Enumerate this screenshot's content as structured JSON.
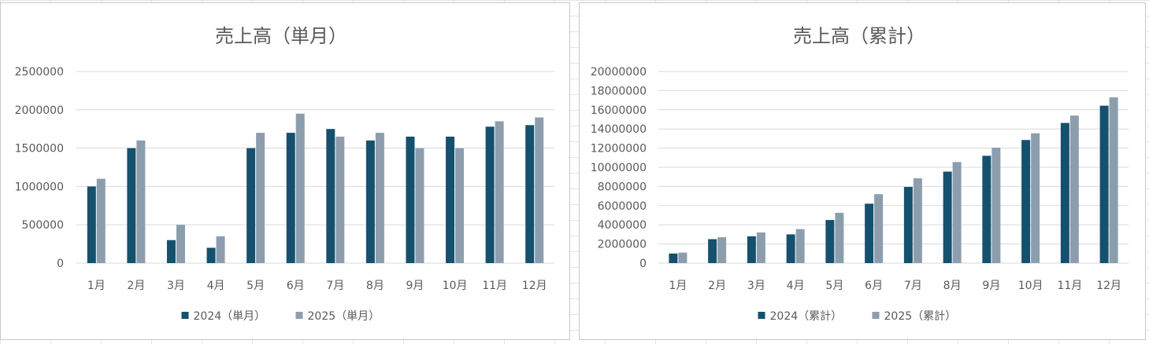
{
  "colors": {
    "series_2024": "#15516E",
    "series_2025": "#8C9EAE",
    "gridline": "#D9D9D9",
    "text": "#595959"
  },
  "chart_data": [
    {
      "type": "bar",
      "title": "売上高（単月）",
      "categories": [
        "1月",
        "2月",
        "3月",
        "4月",
        "5月",
        "6月",
        "7月",
        "8月",
        "9月",
        "10月",
        "11月",
        "12月"
      ],
      "series": [
        {
          "name": "2024（単月）",
          "values": [
            1000000,
            1500000,
            300000,
            200000,
            1500000,
            1700000,
            1750000,
            1600000,
            1650000,
            1650000,
            1780000,
            1800000
          ]
        },
        {
          "name": "2025（単月）",
          "values": [
            1100000,
            1600000,
            500000,
            350000,
            1700000,
            1950000,
            1650000,
            1700000,
            1500000,
            1500000,
            1850000,
            1900000
          ]
        }
      ],
      "ylim": [
        0,
        2500000
      ],
      "yticks": [
        "0",
        "500000",
        "1000000",
        "1500000",
        "2000000",
        "2500000"
      ],
      "grid": true,
      "legend": "bottom"
    },
    {
      "type": "bar",
      "title": "売上高（累計）",
      "categories": [
        "1月",
        "2月",
        "3月",
        "4月",
        "5月",
        "6月",
        "7月",
        "8月",
        "9月",
        "10月",
        "11月",
        "12月"
      ],
      "series": [
        {
          "name": "2024（累計）",
          "values": [
            1000000,
            2500000,
            2800000,
            3000000,
            4500000,
            6200000,
            7950000,
            9550000,
            11200000,
            12850000,
            14630000,
            16430000
          ]
        },
        {
          "name": "2025（累計）",
          "values": [
            1100000,
            2700000,
            3200000,
            3550000,
            5250000,
            7200000,
            8850000,
            10550000,
            12050000,
            13550000,
            15400000,
            17300000
          ]
        }
      ],
      "ylim": [
        0,
        20000000
      ],
      "yticks": [
        "0",
        "2000000",
        "4000000",
        "6000000",
        "8000000",
        "10000000",
        "12000000",
        "14000000",
        "16000000",
        "18000000",
        "20000000"
      ],
      "grid": true,
      "legend": "bottom"
    }
  ]
}
